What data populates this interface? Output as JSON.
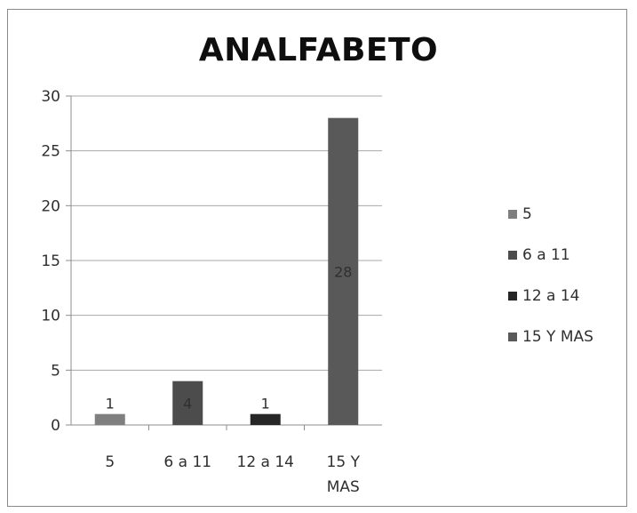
{
  "chart_data": {
    "type": "bar",
    "title": "ANALFABETO",
    "categories": [
      "5",
      "6 a 11",
      "12 a 14",
      "15 Y MAS"
    ],
    "values": [
      1,
      4,
      1,
      28
    ],
    "data_labels": [
      "1",
      "4",
      "1",
      "28"
    ],
    "colors": [
      "#7f7f7f",
      "#4c4c4c",
      "#262626",
      "#595959"
    ],
    "ylim": [
      0,
      30
    ],
    "yticks": [
      "0",
      "5",
      "10",
      "15",
      "20",
      "25",
      "30"
    ],
    "grid": true,
    "legend_position": "right",
    "legend": [
      {
        "label": "5",
        "color": "#7f7f7f"
      },
      {
        "label": "6 a 11",
        "color": "#4c4c4c"
      },
      {
        "label": "12 a 14",
        "color": "#262626"
      },
      {
        "label": "15 Y MAS",
        "color": "#595959"
      }
    ]
  }
}
